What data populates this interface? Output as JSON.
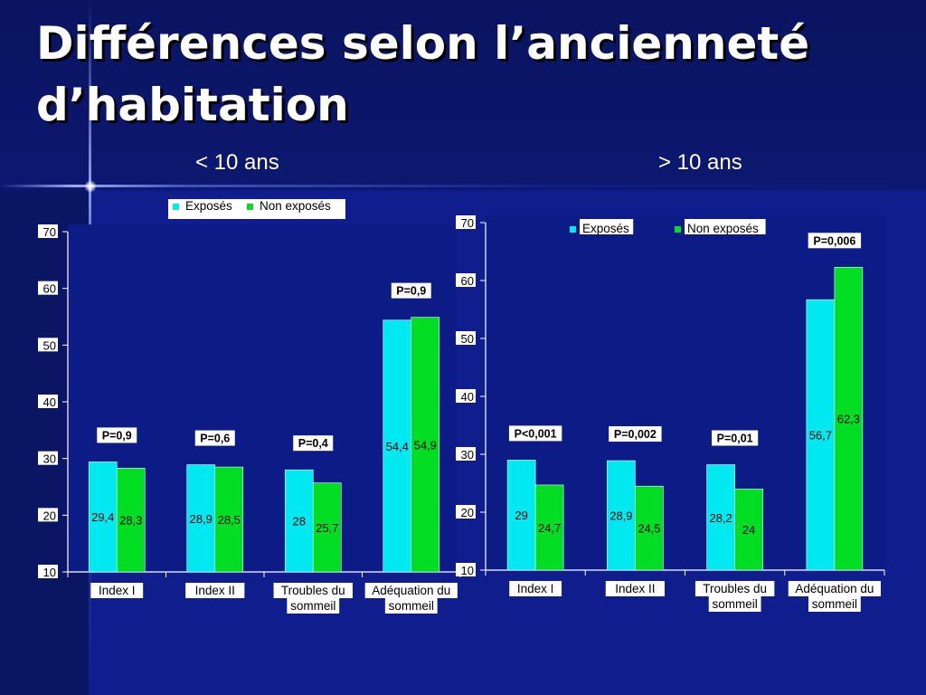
{
  "page": {
    "title_line1": "Différences selon l’ancienneté",
    "title_line2": "d’habitation",
    "colors": {
      "exposes": "#00e8f0",
      "non_exposes": "#00dd22"
    }
  },
  "chart_data": [
    {
      "type": "bar",
      "title": "< 10  ans",
      "categories": [
        [
          "Index I"
        ],
        [
          "Index II"
        ],
        [
          "Troubles du",
          "sommeil"
        ],
        [
          "Adéquation du",
          "sommeil"
        ]
      ],
      "series": [
        {
          "name": "Exposés",
          "values": [
            29.4,
            28.9,
            28,
            54.4
          ],
          "labels": [
            "29,4",
            "28,9",
            "28",
            "54,4"
          ]
        },
        {
          "name": "Non exposés",
          "values": [
            28.3,
            28.5,
            25.7,
            54.9
          ],
          "labels": [
            "28,3",
            "28,5",
            "25,7",
            "54,9"
          ]
        }
      ],
      "pvalues": [
        "P=0,9",
        "P=0,6",
        "P=0,4",
        "P=0,9"
      ],
      "ylim": [
        10,
        70
      ],
      "yticks": [
        10,
        20,
        30,
        40,
        50,
        60,
        70
      ],
      "legend": "top",
      "grid": false
    },
    {
      "type": "bar",
      "title": "> 10 ans",
      "categories": [
        [
          "Index I"
        ],
        [
          "Index II"
        ],
        [
          "Troubles du",
          "sommeil"
        ],
        [
          "Adéquation du",
          "sommeil"
        ]
      ],
      "series": [
        {
          "name": "Exposés",
          "values": [
            29,
            28.9,
            28.2,
            56.7
          ],
          "labels": [
            "29",
            "28,9",
            "28,2",
            "56,7"
          ]
        },
        {
          "name": "Non exposés",
          "values": [
            24.7,
            24.5,
            24,
            62.3
          ],
          "labels": [
            "24,7",
            "24,5",
            "24",
            "62,3"
          ]
        }
      ],
      "pvalues": [
        "P<0,001",
        "P=0,002",
        "P=0,01",
        "P=0,006"
      ],
      "ylim": [
        10,
        70
      ],
      "yticks": [
        10,
        20,
        30,
        40,
        50,
        60,
        70
      ],
      "legend": "top",
      "grid": false
    }
  ]
}
